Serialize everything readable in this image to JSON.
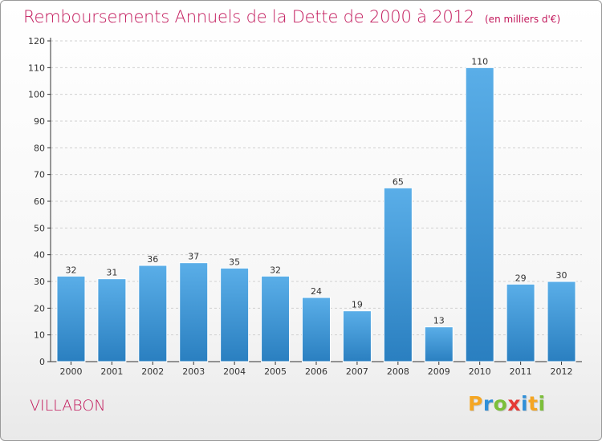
{
  "title": "Remboursements Annuels de la Dette de 2000 à 2012",
  "unit": "(en milliers d'€)",
  "commune": "VILLABON",
  "logo": {
    "text": "Proxiti",
    "letters": [
      {
        "ch": "P",
        "color": "#f5a623"
      },
      {
        "ch": "r",
        "color": "#2f8fd8"
      },
      {
        "ch": "o",
        "color": "#7cbf3a"
      },
      {
        "ch": "x",
        "color": "#e53935"
      },
      {
        "ch": "i",
        "color": "#2f8fd8"
      },
      {
        "ch": "t",
        "color": "#f5a623"
      },
      {
        "ch": "i",
        "color": "#7cbf3a"
      }
    ]
  },
  "colors": {
    "bar_top": "#5aaee8",
    "bar_bottom": "#2a7fc0",
    "accent": "#c2185b",
    "axis": "#333333",
    "grid": "#d0d0d0"
  },
  "chart_data": {
    "type": "bar",
    "categories": [
      "2000",
      "2001",
      "2002",
      "2003",
      "2004",
      "2005",
      "2006",
      "2007",
      "2008",
      "2009",
      "2010",
      "2011",
      "2012"
    ],
    "values": [
      32,
      31,
      36,
      37,
      35,
      32,
      24,
      19,
      65,
      13,
      110,
      29,
      30
    ],
    "ylim": [
      0,
      120
    ],
    "yticks": [
      0,
      10,
      20,
      30,
      40,
      50,
      60,
      70,
      80,
      90,
      100,
      110,
      120
    ],
    "grid": true,
    "data_labels": true
  }
}
